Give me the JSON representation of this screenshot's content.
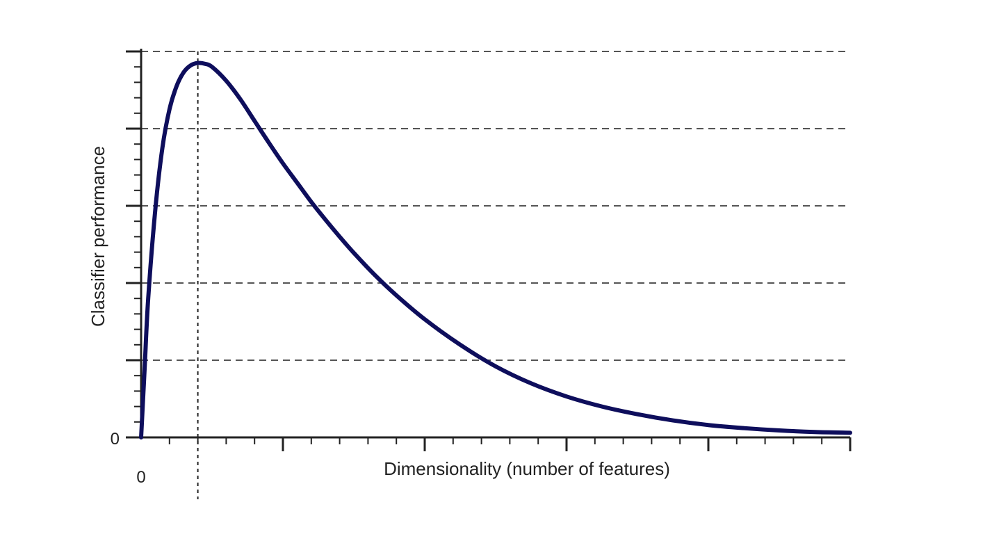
{
  "chart_data": {
    "type": "line",
    "title": "",
    "xlabel": "Dimensionality (number of features)",
    "ylabel": "Classifier performance",
    "x_tick_labels": [
      "0"
    ],
    "y_tick_labels": [
      "0"
    ],
    "xlim": [
      0,
      10
    ],
    "ylim": [
      0,
      5
    ],
    "grid": "horizontal-dashed",
    "peak_x": 0.8,
    "series": [
      {
        "color": "#0e0e5c",
        "x": [
          0,
          0.05,
          0.1,
          0.2,
          0.3,
          0.4,
          0.5,
          0.6,
          0.7,
          0.8,
          0.9,
          1.0,
          1.2,
          1.4,
          1.6,
          1.8,
          2.0,
          2.2,
          2.4,
          2.6,
          2.8,
          3.0,
          3.3,
          3.6,
          4.0,
          4.5,
          5.0,
          5.5,
          6.0,
          6.5,
          7.0,
          7.5,
          8.0,
          8.5,
          9.0,
          9.5,
          10.0
        ],
        "y": [
          0.0,
          0.9,
          1.8,
          2.95,
          3.75,
          4.25,
          4.55,
          4.73,
          4.82,
          4.85,
          4.84,
          4.8,
          4.62,
          4.38,
          4.1,
          3.82,
          3.55,
          3.3,
          3.05,
          2.82,
          2.6,
          2.39,
          2.1,
          1.84,
          1.53,
          1.2,
          0.92,
          0.7,
          0.53,
          0.4,
          0.3,
          0.22,
          0.16,
          0.12,
          0.09,
          0.07,
          0.06
        ]
      }
    ]
  }
}
